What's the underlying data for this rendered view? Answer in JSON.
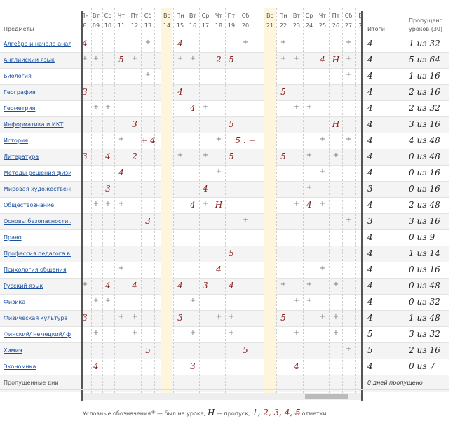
{
  "header": {
    "subjects": "Предметы",
    "totals": "Итоги",
    "missed": "Пропущено уроков (30)",
    "days": [
      {
        "weekday": "Пн",
        "date": "8"
      },
      {
        "weekday": "Вт",
        "date": "09"
      },
      {
        "weekday": "Ср",
        "date": "10"
      },
      {
        "weekday": "Чт",
        "date": "11"
      },
      {
        "weekday": "Пт",
        "date": "12"
      },
      {
        "weekday": "Сб",
        "date": "13"
      },
      {
        "weekday": "Вс",
        "date": "14"
      },
      {
        "weekday": "Пн",
        "date": "15"
      },
      {
        "weekday": "Вт",
        "date": "16"
      },
      {
        "weekday": "Ср",
        "date": "17"
      },
      {
        "weekday": "Чт",
        "date": "18"
      },
      {
        "weekday": "Пт",
        "date": "19"
      },
      {
        "weekday": "Сб",
        "date": "20"
      },
      {
        "weekday": "Вс",
        "date": "21"
      },
      {
        "weekday": "Пн",
        "date": "22"
      },
      {
        "weekday": "Вт",
        "date": "23"
      },
      {
        "weekday": "Ср",
        "date": "24"
      },
      {
        "weekday": "Чт",
        "date": "25"
      },
      {
        "weekday": "Пт",
        "date": "26"
      },
      {
        "weekday": "Сб",
        "date": "27"
      },
      {
        "weekday": "В",
        "date": "2"
      }
    ]
  },
  "rows": [
    {
      "subject": "Алгебра и начала анализа",
      "cells": [
        "4",
        null,
        null,
        null,
        null,
        "+",
        null,
        "4",
        null,
        null,
        null,
        null,
        "+",
        null,
        "+",
        null,
        null,
        null,
        null,
        "+",
        null
      ],
      "total": "4",
      "missed": "1 из 32"
    },
    {
      "subject": "Английский язык",
      "cells": [
        "+",
        "+",
        null,
        "5",
        "+",
        null,
        null,
        "+",
        "+",
        null,
        "2",
        "5",
        null,
        null,
        "+",
        "+",
        null,
        "4",
        "Н",
        "+",
        null
      ],
      "total": "4",
      "missed": "5 из 64"
    },
    {
      "subject": "Биология",
      "cells": [
        null,
        null,
        null,
        null,
        null,
        "+",
        null,
        null,
        null,
        null,
        null,
        null,
        null,
        null,
        null,
        null,
        null,
        null,
        null,
        "+",
        null
      ],
      "total": "4",
      "missed": "1 из 16"
    },
    {
      "subject": "География",
      "cells": [
        "3",
        null,
        null,
        null,
        null,
        null,
        null,
        "4",
        null,
        null,
        null,
        null,
        null,
        null,
        "5",
        null,
        null,
        null,
        null,
        null,
        null
      ],
      "total": "4",
      "missed": "2 из 16"
    },
    {
      "subject": "Геометрия",
      "cells": [
        null,
        "+",
        "+",
        null,
        null,
        null,
        null,
        null,
        "4",
        "+",
        null,
        null,
        null,
        null,
        null,
        "+",
        "+",
        null,
        null,
        null,
        null
      ],
      "total": "4",
      "missed": "2 из 32"
    },
    {
      "subject": "Информатика и ИКТ",
      "cells": [
        null,
        null,
        null,
        null,
        "3",
        null,
        null,
        null,
        null,
        null,
        null,
        "5",
        null,
        null,
        null,
        null,
        null,
        null,
        "Н",
        null,
        null
      ],
      "total": "4",
      "missed": "3 из 16"
    },
    {
      "subject": "История",
      "cells": [
        null,
        null,
        null,
        "+",
        null,
        "+ 4",
        null,
        null,
        null,
        null,
        "+",
        null,
        "5 . +",
        null,
        null,
        null,
        null,
        "+",
        null,
        "+",
        null
      ],
      "total": "4",
      "missed": "4 из 48"
    },
    {
      "subject": "Литература",
      "cells": [
        "3",
        null,
        "4",
        null,
        "2",
        null,
        null,
        "+",
        null,
        "+",
        null,
        "5",
        null,
        null,
        "5",
        null,
        "+",
        null,
        "+",
        null,
        null
      ],
      "total": "4",
      "missed": "0 из 48"
    },
    {
      "subject": "Методы решения физиче",
      "cells": [
        null,
        null,
        null,
        "4",
        null,
        null,
        null,
        null,
        null,
        null,
        "+",
        null,
        null,
        null,
        null,
        null,
        null,
        "+",
        null,
        null,
        null
      ],
      "total": "4",
      "missed": "0 из 16"
    },
    {
      "subject": "Мировая художественная к",
      "cells": [
        null,
        null,
        "3",
        null,
        null,
        null,
        null,
        null,
        null,
        "4",
        null,
        null,
        null,
        null,
        null,
        null,
        "+",
        null,
        null,
        null,
        null
      ],
      "total": "3",
      "missed": "0 из 16"
    },
    {
      "subject": "Обществознание",
      "cells": [
        null,
        "+",
        "+",
        "+",
        null,
        null,
        null,
        null,
        "4",
        "+",
        "Н",
        null,
        null,
        null,
        null,
        "+",
        "4",
        "+",
        null,
        null,
        null
      ],
      "total": "4",
      "missed": "2 из 48"
    },
    {
      "subject": "Основы безопасности жиз",
      "cells": [
        null,
        null,
        null,
        null,
        null,
        "3",
        null,
        null,
        null,
        null,
        null,
        null,
        "+",
        null,
        null,
        null,
        null,
        null,
        null,
        "+",
        null
      ],
      "total": "3",
      "missed": "3 из 16"
    },
    {
      "subject": "Право",
      "cells": [
        null,
        null,
        null,
        null,
        null,
        null,
        null,
        null,
        null,
        null,
        null,
        null,
        null,
        null,
        null,
        null,
        null,
        null,
        null,
        null,
        null
      ],
      "total": "4",
      "missed": "0 из 9"
    },
    {
      "subject": "Профессия педагога в сов",
      "cells": [
        null,
        null,
        null,
        null,
        null,
        null,
        null,
        null,
        null,
        null,
        null,
        "5",
        null,
        null,
        null,
        null,
        null,
        null,
        null,
        null,
        null
      ],
      "total": "4",
      "missed": "1 из 14"
    },
    {
      "subject": "Психология общения",
      "cells": [
        null,
        null,
        null,
        "+",
        null,
        null,
        null,
        null,
        null,
        null,
        "4",
        null,
        null,
        null,
        null,
        null,
        null,
        "+",
        null,
        null,
        null
      ],
      "total": "4",
      "missed": "0 из 16"
    },
    {
      "subject": "Русский язык",
      "cells": [
        "+",
        null,
        "4",
        null,
        "4",
        null,
        null,
        "4",
        null,
        "3",
        null,
        "4",
        null,
        null,
        "+",
        null,
        "+",
        null,
        "+",
        null,
        null
      ],
      "total": "4",
      "missed": "0 из 48"
    },
    {
      "subject": "Физика",
      "cells": [
        null,
        "+",
        "+",
        null,
        null,
        null,
        null,
        null,
        "+",
        null,
        null,
        null,
        null,
        null,
        null,
        "+",
        "+",
        null,
        null,
        null,
        null
      ],
      "total": "4",
      "missed": "0 из 32"
    },
    {
      "subject": "Физическая культура",
      "cells": [
        "3",
        null,
        null,
        "+",
        "+",
        null,
        null,
        "3",
        null,
        null,
        "+",
        "+",
        null,
        null,
        "5",
        null,
        null,
        "+",
        "+",
        null,
        null
      ],
      "total": "4",
      "missed": "1 из 48"
    },
    {
      "subject": "Финский/ немецкий/ франц",
      "cells": [
        null,
        "+",
        null,
        null,
        "+",
        null,
        null,
        null,
        "+",
        null,
        null,
        "+",
        null,
        null,
        null,
        "+",
        null,
        null,
        "+",
        null,
        null
      ],
      "total": "5",
      "missed": "3 из 32"
    },
    {
      "subject": "Химия",
      "cells": [
        null,
        null,
        null,
        null,
        null,
        "5",
        null,
        null,
        null,
        null,
        null,
        null,
        "5",
        null,
        null,
        null,
        null,
        null,
        null,
        "+",
        null
      ],
      "total": "5",
      "missed": "2 из 16"
    },
    {
      "subject": "Экономика",
      "cells": [
        null,
        "4",
        null,
        null,
        null,
        null,
        null,
        null,
        "3",
        null,
        null,
        null,
        null,
        null,
        null,
        "4",
        null,
        null,
        null,
        null,
        null
      ],
      "total": "4",
      "missed": "0 из 7"
    }
  ],
  "footer": {
    "label": "Пропущенные дни",
    "value": "0 дней пропущено"
  },
  "legend": {
    "title": "Условные обозначения:",
    "present_mark": "+",
    "present": "— был на уроке,",
    "absent_mark": "Н",
    "absent": "— пропуск,",
    "grades_mark": "1, 2, 3, 4, 5",
    "grades": "— отметки"
  }
}
